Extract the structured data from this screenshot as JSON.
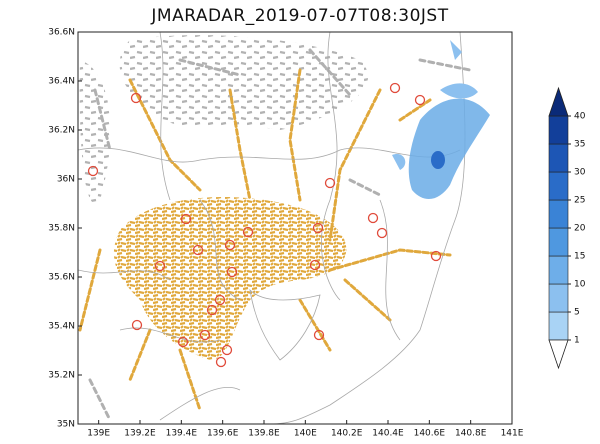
{
  "title": "JMARADAR_2019-07-07T08:30JST",
  "map": {
    "xlim": [
      138.9,
      141
    ],
    "ylim": [
      35,
      36.6
    ],
    "xticks": [
      {
        "value": 139,
        "label": "139E"
      },
      {
        "value": 139.2,
        "label": "139.2E"
      },
      {
        "value": 139.4,
        "label": "139.4E"
      },
      {
        "value": 139.6,
        "label": "139.6E"
      },
      {
        "value": 139.8,
        "label": "139.8E"
      },
      {
        "value": 140,
        "label": "140E"
      },
      {
        "value": 140.2,
        "label": "140.2E"
      },
      {
        "value": 140.4,
        "label": "140.4E"
      },
      {
        "value": 140.6,
        "label": "140.6E"
      },
      {
        "value": 140.8,
        "label": "140.8E"
      },
      {
        "value": 141,
        "label": "141E"
      }
    ],
    "yticks": [
      {
        "value": 35,
        "label": "35N"
      },
      {
        "value": 35.2,
        "label": "35.2N"
      },
      {
        "value": 35.4,
        "label": "35.4N"
      },
      {
        "value": 35.6,
        "label": "35.6N"
      },
      {
        "value": 35.8,
        "label": "35.8N"
      },
      {
        "value": 36,
        "label": "36N"
      },
      {
        "value": 36.2,
        "label": "36.2N"
      },
      {
        "value": 36.4,
        "label": "36.4N"
      },
      {
        "value": 36.6,
        "label": "36.6N"
      }
    ]
  },
  "colorbar": {
    "levels": [
      1,
      5,
      10,
      15,
      20,
      25,
      30,
      35,
      40
    ],
    "colors": [
      "#a9d3f5",
      "#8cc0ef",
      "#6eaee9",
      "#4f98e0",
      "#3a83d6",
      "#2a6cc8",
      "#1d56b5",
      "#123f9a"
    ],
    "under_color": "#ffffff",
    "over_color": "#0a2a78"
  }
}
